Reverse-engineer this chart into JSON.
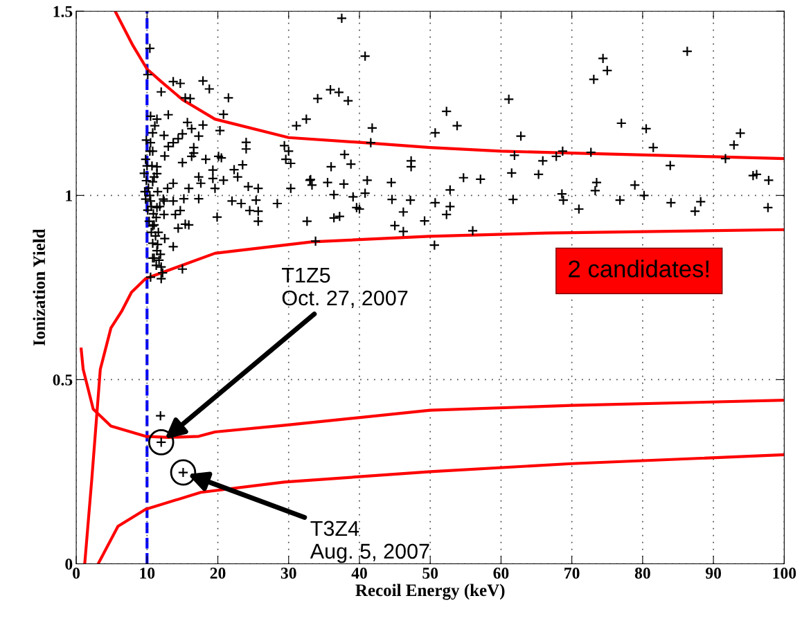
{
  "chart_data": {
    "type": "scatter",
    "xlabel": "Recoil Energy (keV)",
    "ylabel": "Ionization Yield",
    "xlim": [
      0,
      100
    ],
    "ylim": [
      0,
      1.5
    ],
    "xticks": [
      0,
      10,
      20,
      30,
      40,
      50,
      60,
      70,
      80,
      90,
      100
    ],
    "yticks": [
      0,
      0.5,
      1,
      1.5
    ],
    "grid": true,
    "series": [
      {
        "type": "scatter",
        "color": "#000000",
        "marker": "cross",
        "x": [
          10.4,
          10.1,
          13.7,
          14.7,
          17.9,
          18.8,
          12.0,
          15.4,
          16.1,
          21.5,
          20.8,
          13.0,
          10.5,
          11.4,
          17.9,
          15.7,
          20.3,
          11.1,
          16.3,
          10.8,
          12.4,
          15.0,
          17.3,
          14.4,
          10.5,
          13.7,
          13.0,
          16.6,
          24.0,
          24.0,
          29.4,
          30.0,
          31.1,
          32.5,
          10.8,
          12.5,
          16.6,
          16.3,
          20.1,
          20.5,
          18.3,
          9.8,
          15.0,
          29.6,
          30.3,
          11.4,
          22.3,
          23.5,
          19.3,
          11.4,
          17.3,
          19.3,
          22.8,
          20.8,
          13.7,
          10.8,
          17.6,
          24.3,
          25.7,
          19.6,
          15.9,
          12.9,
          30.3,
          33.0,
          17.3,
          12.4,
          13.7,
          15.2,
          22.0,
          23.3,
          25.4,
          28.4,
          11.4,
          14.7,
          24.5,
          25.7,
          12.4,
          14.0,
          19.9,
          25.7,
          32.6,
          15.4,
          15.9,
          14.4,
          10.8,
          12.5,
          13.7,
          11.5,
          10.8,
          11.7,
          15.0,
          12.0,
          10.5,
          12.0,
          9.6,
          9.9,
          10.2,
          9.7,
          10.4,
          9.8,
          10.6,
          10.1,
          10.9,
          10.3,
          11.0,
          10.6,
          11.2,
          10.8,
          11.4,
          11.0,
          11.3,
          10.7,
          11.0,
          10.4,
          9.9,
          10.5,
          11.3,
          11.6,
          11.9,
          12.2,
          11.5,
          11.8,
          12.3,
          10.0,
          37.5,
          40.8,
          35.9,
          37.1,
          34.1,
          38.4,
          41.8,
          41.6,
          37.9,
          38.8,
          36.0,
          33.1,
          33.3,
          35.5,
          37.8,
          41.1,
          36.4,
          39.1,
          40.8,
          39.6,
          40.0,
          36.4,
          37.2,
          33.8,
          44.5,
          44.6,
          47.2,
          46.2,
          45.0,
          46.2,
          47.3,
          47.3,
          49.2,
          50.6,
          50.7,
          52.3,
          52.8,
          52.8,
          54.7,
          57.1,
          56.0,
          50.7,
          52.3,
          53.8,
          61.1,
          62.8,
          61.9,
          61.5,
          61.7,
          65.9,
          65.3,
          67.8,
          68.7,
          72.7,
          73.1,
          74.4,
          75.0,
          77.0,
          80.5,
          81.5,
          86.3,
          83.9,
          68.6,
          68.8,
          71.0,
          73.5,
          73.3,
          76.8,
          78.9,
          80.2,
          84.0,
          87.4,
          88.2,
          91.7,
          92.9,
          93.8,
          95.6,
          96.1,
          97.8,
          97.7,
          11.9,
          12.0,
          15.1
        ],
        "values": [
          1.399,
          1.328,
          1.309,
          1.304,
          1.311,
          1.289,
          1.281,
          1.265,
          1.263,
          1.265,
          1.22,
          1.219,
          1.215,
          1.207,
          1.191,
          1.198,
          1.176,
          1.189,
          1.181,
          1.17,
          1.163,
          1.167,
          1.161,
          1.154,
          1.143,
          1.143,
          1.133,
          1.13,
          1.144,
          1.126,
          1.135,
          1.12,
          1.189,
          1.207,
          1.12,
          1.107,
          1.115,
          1.106,
          1.106,
          1.102,
          1.098,
          1.098,
          1.089,
          1.098,
          1.087,
          1.078,
          1.07,
          1.083,
          1.069,
          1.059,
          1.05,
          1.046,
          1.05,
          1.041,
          1.033,
          1.037,
          1.033,
          1.024,
          1.019,
          1.019,
          1.019,
          1.019,
          1.019,
          1.041,
          0.991,
          0.985,
          0.985,
          0.991,
          0.985,
          0.978,
          0.987,
          0.978,
          0.967,
          0.959,
          0.959,
          0.957,
          0.948,
          0.948,
          0.941,
          0.93,
          0.93,
          0.922,
          0.92,
          0.911,
          0.917,
          0.883,
          0.861,
          0.867,
          0.83,
          0.824,
          0.8,
          0.806,
          0.778,
          0.774,
          1.06,
          1.04,
          1.02,
          1.01,
          1.0,
          0.99,
          0.97,
          0.96,
          0.95,
          0.93,
          0.92,
          0.9,
          0.89,
          0.87,
          0.85,
          0.83,
          0.81,
          1.08,
          1.05,
          1.12,
          1.15,
          0.985,
          0.94,
          0.9,
          0.84,
          0.79,
          1.01,
          0.97,
          0.99,
          1.08,
          1.481,
          1.378,
          1.287,
          1.28,
          1.263,
          1.257,
          1.183,
          1.143,
          1.111,
          1.085,
          1.078,
          1.043,
          1.028,
          1.035,
          1.031,
          1.041,
          1.002,
          0.996,
          1.006,
          0.967,
          0.963,
          0.939,
          0.943,
          0.876,
          1.035,
          0.989,
          0.987,
          0.955,
          0.918,
          0.902,
          1.094,
          1.078,
          0.931,
          0.865,
          0.98,
          0.948,
          0.97,
          1.015,
          1.048,
          1.044,
          0.904,
          1.17,
          1.228,
          1.189,
          1.261,
          1.161,
          1.109,
          1.061,
          0.989,
          1.094,
          1.057,
          1.106,
          1.12,
          1.117,
          1.315,
          1.372,
          1.339,
          1.196,
          1.181,
          1.13,
          1.391,
          1.081,
          1.004,
          0.987,
          0.963,
          1.035,
          1.013,
          0.987,
          1.028,
          1.0,
          0.98,
          0.957,
          0.983,
          1.1,
          1.137,
          1.169,
          1.054,
          1.057,
          1.041,
          0.967,
          0.402,
          0.33,
          0.248
        ]
      },
      {
        "type": "line",
        "color": "#ff0000",
        "x": [
          5.5,
          8,
          10,
          12,
          15,
          19.6,
          30,
          40,
          50,
          60,
          70,
          90,
          100
        ],
        "values": [
          1.5,
          1.407,
          1.343,
          1.309,
          1.26,
          1.207,
          1.157,
          1.144,
          1.13,
          1.12,
          1.115,
          1.105,
          1.1
        ]
      },
      {
        "type": "line",
        "color": "#ff0000",
        "x": [
          1.2,
          2.2,
          3.4,
          4.9,
          6.4,
          7.8,
          9.8,
          19.6,
          33.3,
          49.9,
          66.5,
          100
        ],
        "values": [
          0,
          0.23,
          0.528,
          0.64,
          0.685,
          0.737,
          0.774,
          0.843,
          0.874,
          0.889,
          0.898,
          0.907
        ]
      },
      {
        "type": "line",
        "color": "#ff0000",
        "x": [
          0.7,
          0.98,
          2.4,
          4.9,
          9.8,
          13,
          17.3,
          19.6,
          29.4,
          50,
          70,
          100
        ],
        "values": [
          0.583,
          0.528,
          0.42,
          0.374,
          0.346,
          0.343,
          0.346,
          0.358,
          0.376,
          0.417,
          0.43,
          0.444
        ]
      },
      {
        "type": "line",
        "color": "#ff0000",
        "x": [
          3.1,
          5.9,
          9.8,
          17.6,
          29.4,
          50,
          70,
          100
        ],
        "values": [
          0,
          0.102,
          0.148,
          0.194,
          0.222,
          0.25,
          0.272,
          0.296
        ]
      }
    ],
    "ref_lines": [
      {
        "axis": "x",
        "value": 10,
        "color": "#0000ff",
        "line_style": "dashed"
      }
    ],
    "annotations": [
      "T1Z5\nOct. 27, 2007",
      "T3Z4\nAug. 5, 2007",
      "2 candidates!"
    ]
  }
}
